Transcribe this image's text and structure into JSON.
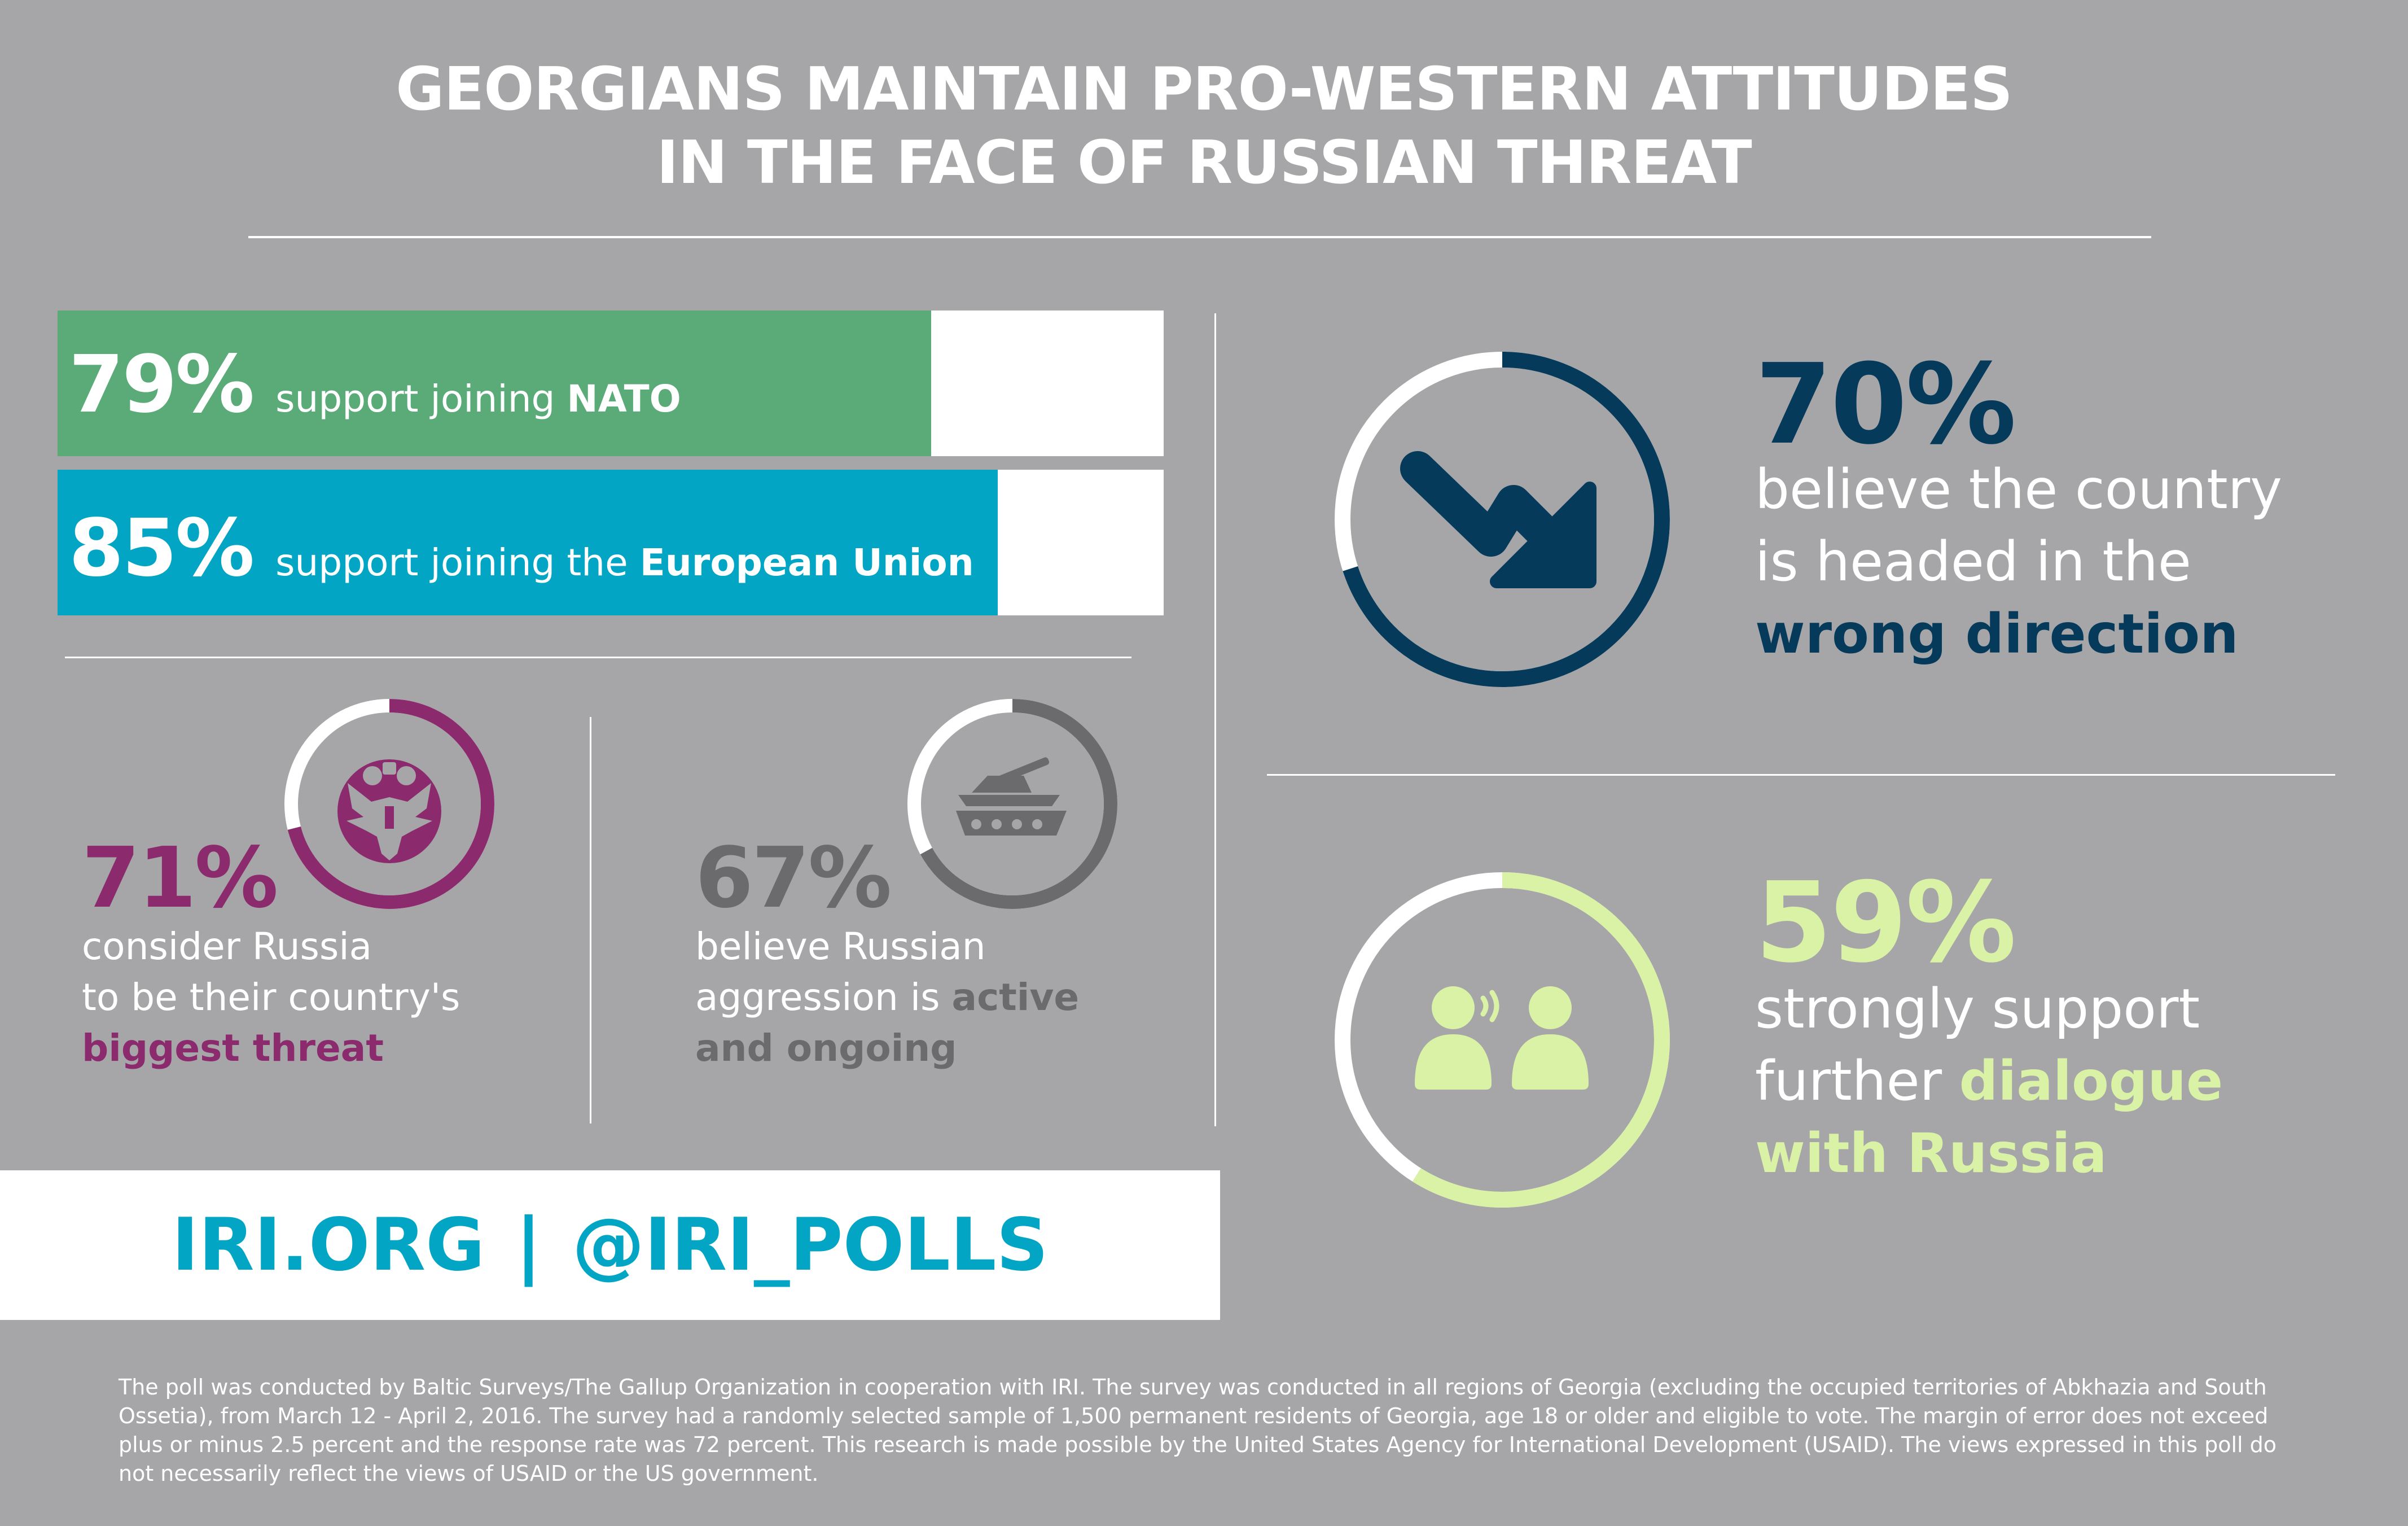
{
  "title": {
    "line1": "GEORGIANS MAINTAIN PRO-WESTERN ATTITUDES",
    "line2": "IN THE FACE OF RUSSIAN THREAT"
  },
  "colors": {
    "background": "#a6a6a8",
    "nato_green": "#5aab78",
    "eu_teal": "#02a6c4",
    "threat_purple": "#8b2b6e",
    "aggression_gray": "#6b6b6d",
    "direction_navy": "#063a5b",
    "dialogue_lime": "#d9f2a6",
    "white": "#ffffff"
  },
  "bars": [
    {
      "id": "nato",
      "percent": "79%",
      "value": 79,
      "label_prefix": "support joining ",
      "label_bold": "NATO"
    },
    {
      "id": "eu",
      "percent": "85%",
      "value": 85,
      "label_prefix": "support joining the ",
      "label_bold": "European Union"
    }
  ],
  "threat": {
    "percent": "71%",
    "value": 71,
    "line1": "consider Russia",
    "line2": "to be their country's",
    "bold": "biggest threat",
    "icon": "double-headed-eagle-icon"
  },
  "aggression": {
    "percent": "67%",
    "value": 67,
    "line1": "believe Russian",
    "line2_prefix": "aggression is ",
    "line2_bold": "active",
    "line3_bold": "and ongoing",
    "icon": "tank-icon"
  },
  "direction": {
    "percent": "70%",
    "value": 70,
    "line1": "believe the country",
    "line2": "is headed in the",
    "bold": "wrong direction",
    "icon": "trend-down-arrow-icon"
  },
  "dialogue": {
    "percent": "59%",
    "value": 59,
    "line1": "strongly support",
    "line2_prefix": "further ",
    "line2_bold": "dialogue",
    "line3_bold": "with Russia",
    "icon": "people-talking-icon"
  },
  "links": {
    "site": "IRI.ORG",
    "separator": "|",
    "handle": "@IRI_POLLS"
  },
  "footer": {
    "text": "The poll was conducted by Baltic Surveys/The Gallup Organization in cooperation with IRI. The survey was conducted in all regions of Georgia (excluding the occupied territories of Abkhazia and South Ossetia), from March 12 - April 2, 2016. The survey had a randomly selected sample of 1,500 permanent residents of Georgia, age 18 or older and eligible to vote. The margin of error does not exceed plus or minus 2.5 percent and the response rate was 72 percent. This research is made possible by the United States Agency for International Development (USAID). The views expressed in this poll do not necessarily reflect the views of USAID or the US government."
  }
}
